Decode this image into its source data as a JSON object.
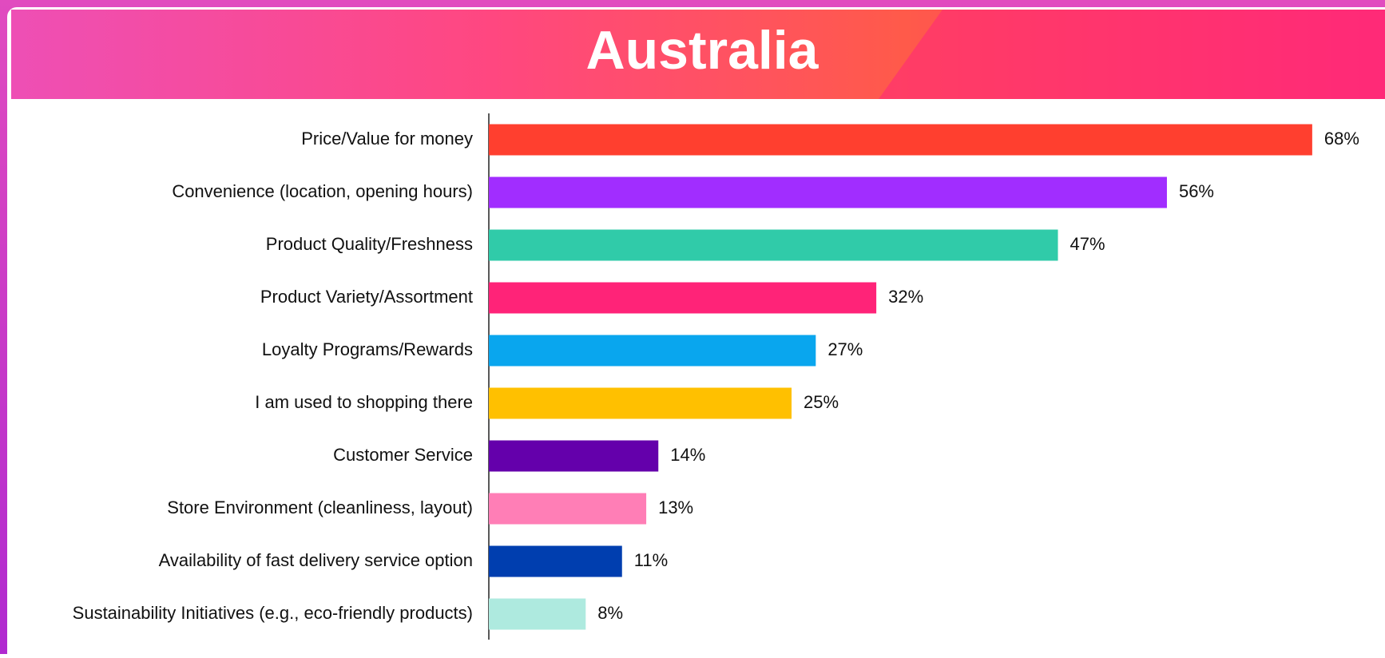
{
  "chart_data": {
    "type": "bar",
    "orientation": "horizontal",
    "title": "Australia",
    "categories": [
      "Price/Value for money",
      "Convenience (location, opening hours)",
      "Product Quality/Freshness",
      "Product Variety/Assortment",
      "Loyalty Programs/Rewards",
      "I am used to shopping there",
      "Customer Service",
      "Store Environment (cleanliness, layout)",
      "Availability of fast delivery service option",
      "Sustainability Initiatives (e.g., eco-friendly products)"
    ],
    "values": [
      68,
      56,
      47,
      32,
      27,
      25,
      14,
      13,
      11,
      8
    ],
    "value_labels": [
      "68%",
      "56%",
      "47%",
      "32%",
      "27%",
      "25%",
      "14%",
      "13%",
      "11%",
      "8%"
    ],
    "colors": [
      "#ff3f2f",
      "#a12dff",
      "#30cba9",
      "#ff2378",
      "#09a6ee",
      "#ffc000",
      "#6400ab",
      "#ff7eb6",
      "#003eaf",
      "#aeeadf"
    ]
  }
}
